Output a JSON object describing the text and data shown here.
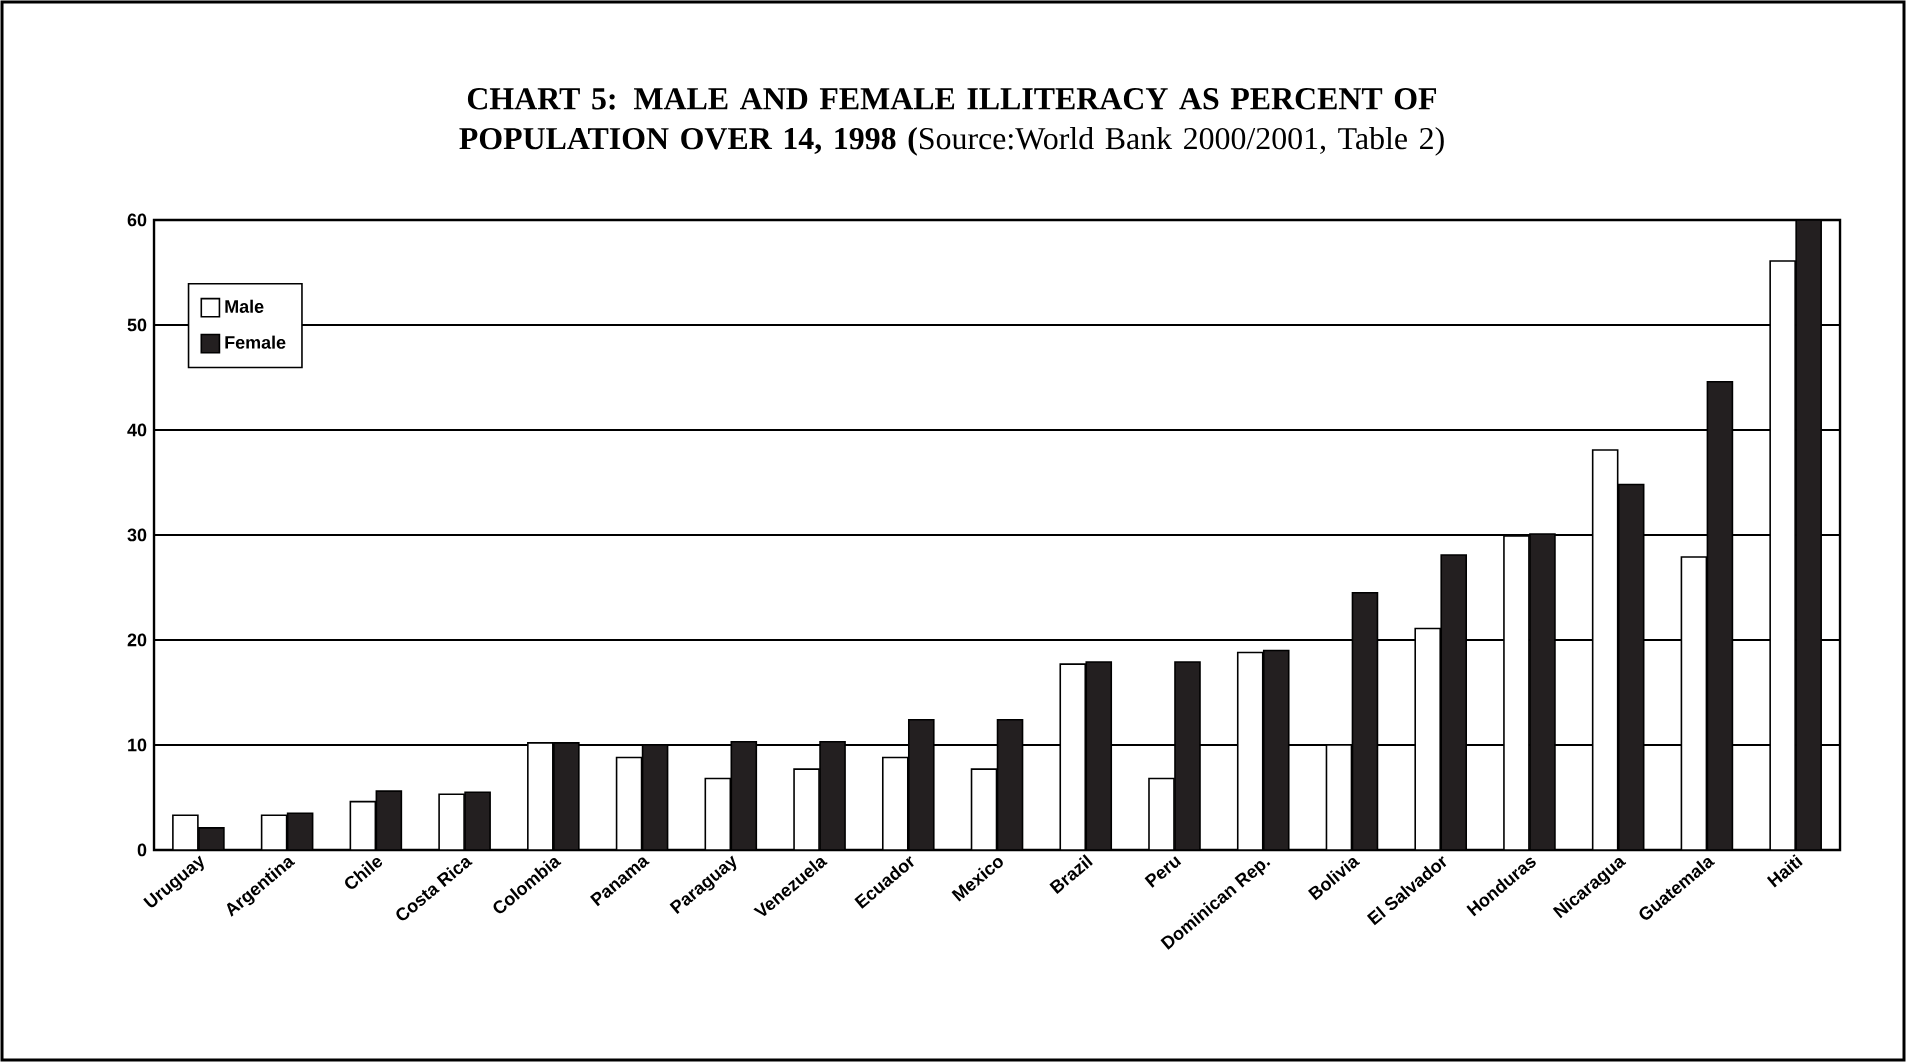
{
  "chart_data": {
    "type": "bar",
    "title": "**CHART 5: MALE AND FEMALE ILLITERACY AS PERCENT OF POPULATION OVER 14, 1998 (**Source:World Bank 2000/2001, Table 2)",
    "categories": [
      "Uruguay",
      "Argentina",
      "Chile",
      "Costa Rica",
      "Colombia",
      "Panama",
      "Paraguay",
      "Venezuela",
      "Ecuador",
      "Mexico",
      "Brazil",
      "Peru",
      "Dominican Rep.",
      "Bolivia",
      "El Salvador",
      "Honduras",
      "Nicaragua",
      "Guatemala",
      "Haiti"
    ],
    "series": [
      {
        "name": "Male",
        "color": "#ffffff",
        "values": [
          3.3,
          3.3,
          4.6,
          5.3,
          10.2,
          8.8,
          6.8,
          7.7,
          8.8,
          7.7,
          17.7,
          6.8,
          18.8,
          10.0,
          21.1,
          29.9,
          38.1,
          27.9,
          56.1
        ]
      },
      {
        "name": "Female",
        "color": "#231f20",
        "values": [
          2.1,
          3.5,
          5.6,
          5.5,
          10.2,
          10.0,
          10.3,
          10.3,
          12.4,
          12.4,
          17.9,
          17.9,
          19.0,
          24.5,
          28.1,
          30.1,
          34.8,
          44.6,
          60
        ]
      }
    ],
    "ylim": [
      0,
      60
    ],
    "yticks": [
      0,
      10,
      20,
      30,
      40,
      50,
      60
    ],
    "grid": "y",
    "legend": "top left"
  }
}
